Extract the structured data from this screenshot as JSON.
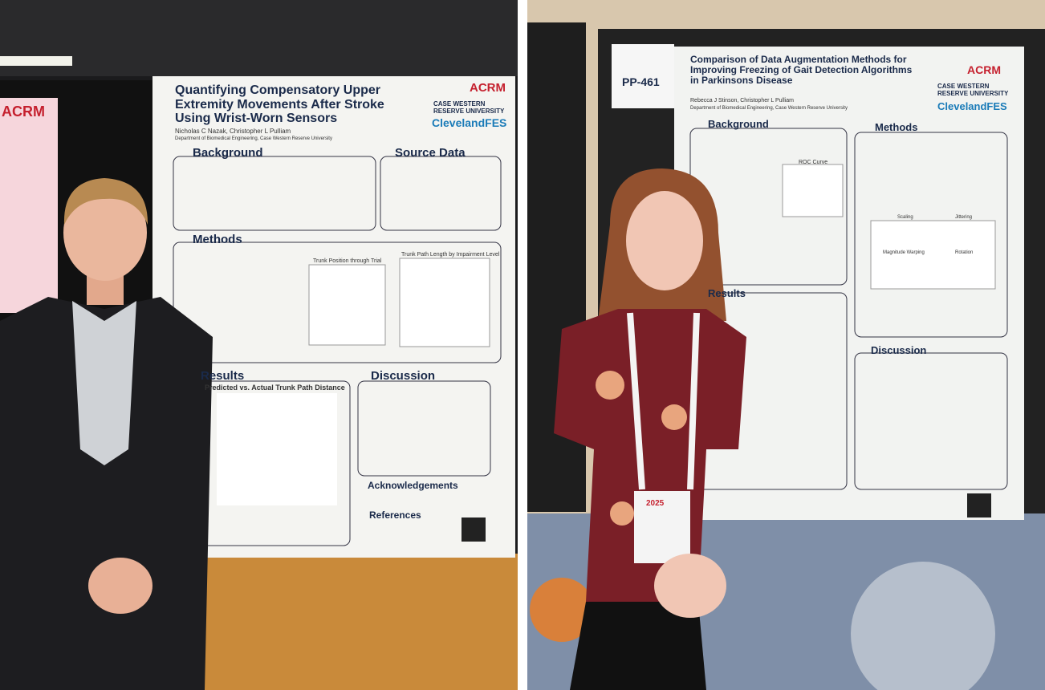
{
  "left_poster": {
    "logo_acrm": "ACRM",
    "logo_cwru": "CASE WESTERN RESERVE UNIVERSITY",
    "logo_fes": "ClevelandFES",
    "title": "Quantifying Compensatory Upper Extremity Movements After Stroke Using Wrist-Worn Sensors",
    "authors": "Nicholas C Nazak, Christopher L Pulliam",
    "affiliation": "Department of Biomedical Engineering, Case Western Reserve University",
    "sections": [
      "Background",
      "Source Data",
      "Methods",
      "Results",
      "Discussion",
      "Acknowledgements",
      "References"
    ],
    "figures": [
      "Trunk Position through Trial",
      "Trunk Path Length by Impairment Level",
      "Predicted vs. Actual Trunk Path Distance"
    ],
    "side_logo": "ACRM"
  },
  "right_poster": {
    "id": "PP-461",
    "logo_acrm": "ACRM",
    "logo_cwru": "CASE WESTERN RESERVE UNIVERSITY",
    "logo_fes": "ClevelandFES",
    "title": "Comparison of Data Augmentation Methods for Improving Freezing of Gait Detection Algorithms in Parkinsons Disease",
    "authors": "Rebecca J Stinson, Christopher L Pulliam",
    "affiliation": "Department of Biomedical Engineering, Case Western Reserve University",
    "sections": [
      "Background",
      "Methods",
      "Results",
      "Discussion"
    ],
    "figures": [
      "ROC Curve",
      "Scaling",
      "Jittering",
      "Magnitude Warping",
      "Rotation"
    ]
  },
  "badge": {
    "year": "2025"
  }
}
